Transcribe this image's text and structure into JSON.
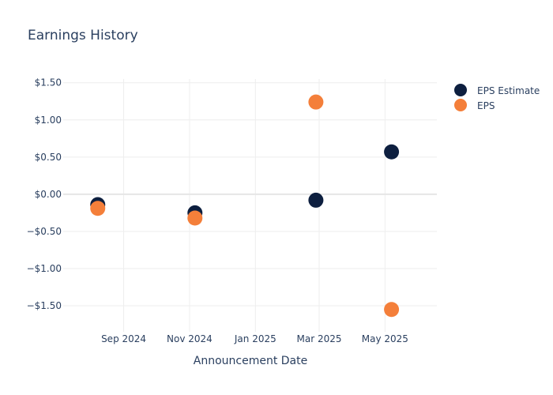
{
  "chart_data": {
    "type": "scatter",
    "title": "Earnings History",
    "xlabel": "Announcement Date",
    "ylabel": "",
    "x_tick_labels": [
      "Sep 2024",
      "Nov 2024",
      "Jan 2025",
      "Mar 2025",
      "May 2025"
    ],
    "x_tick_dates": [
      "2024-09-01",
      "2024-11-01",
      "2025-01-01",
      "2025-03-01",
      "2025-05-01"
    ],
    "xlim": [
      "2024-07-07",
      "2025-06-18"
    ],
    "y_tick_labels": [
      "$1.50",
      "$1.00",
      "$0.50",
      "$0.00",
      "−$0.50",
      "−$1.00",
      "−$1.50"
    ],
    "y_tick_values": [
      1.5,
      1.0,
      0.5,
      0.0,
      -0.5,
      -1.0,
      -1.5
    ],
    "ylim": [
      -1.85,
      1.55
    ],
    "grid": true,
    "legend_position": "top-right",
    "series": [
      {
        "name": "EPS Estimate",
        "color": "#0d1f3f",
        "points": [
          {
            "x": "2024-08-08",
            "y": -0.14
          },
          {
            "x": "2024-11-06",
            "y": -0.25
          },
          {
            "x": "2025-02-26",
            "y": -0.08
          },
          {
            "x": "2025-05-07",
            "y": 0.57
          }
        ]
      },
      {
        "name": "EPS",
        "color": "#f47f3a",
        "points": [
          {
            "x": "2024-08-08",
            "y": -0.19
          },
          {
            "x": "2024-11-06",
            "y": -0.32
          },
          {
            "x": "2025-02-26",
            "y": 1.24
          },
          {
            "x": "2025-05-07",
            "y": -1.55
          }
        ]
      }
    ]
  }
}
